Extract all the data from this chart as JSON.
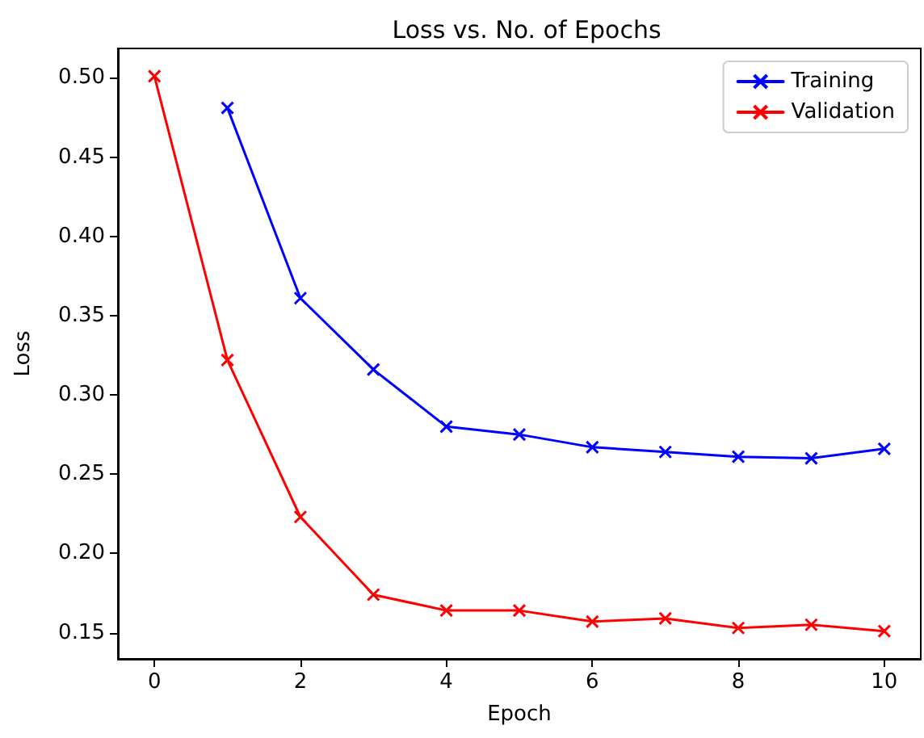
{
  "chart_data": {
    "type": "line",
    "title": "Loss vs. No. of Epochs",
    "xlabel": "Epoch",
    "ylabel": "Loss",
    "xlim": [
      -0.5,
      10.5
    ],
    "xticks": [
      0,
      2,
      4,
      6,
      8,
      10
    ],
    "ylim": [
      0.1335,
      0.5185
    ],
    "yticks": [
      0.15,
      {
        "value": 0.2,
        "label": "0.20"
      },
      0.25,
      {
        "value": 0.3,
        "label": "0.30"
      },
      0.35,
      {
        "value": 0.4,
        "label": "0.40"
      },
      0.45,
      {
        "value": 0.5,
        "label": "0.50"
      }
    ],
    "grid": false,
    "legend": "top right",
    "marker": "cross",
    "line_style": "solid",
    "series": [
      {
        "name": "Training",
        "color": "#0000ff",
        "x": [
          1,
          2,
          3,
          4,
          5,
          6,
          7,
          8,
          9,
          10
        ],
        "values": [
          0.481,
          0.361,
          0.316,
          0.28,
          0.275,
          0.267,
          0.264,
          0.261,
          0.26,
          0.266
        ]
      },
      {
        "name": "Validation",
        "color": "#ff0000",
        "x": [
          0,
          1,
          2,
          3,
          4,
          5,
          6,
          7,
          8,
          9,
          10
        ],
        "values": [
          0.501,
          0.322,
          0.223,
          0.174,
          0.164,
          0.164,
          0.157,
          0.159,
          0.153,
          0.155,
          0.151
        ]
      }
    ]
  }
}
